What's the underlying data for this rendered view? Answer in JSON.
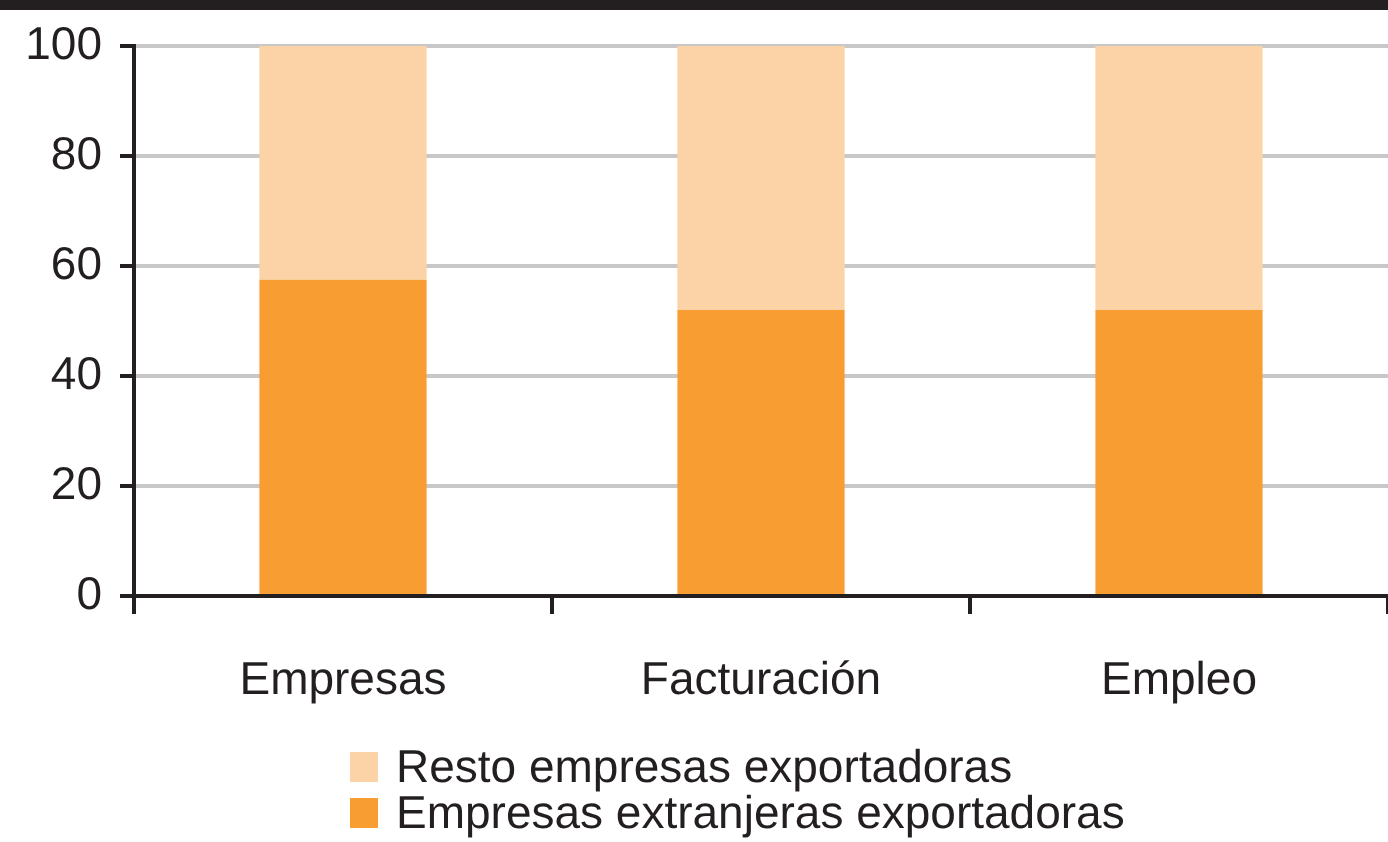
{
  "chart_data": {
    "type": "bar",
    "stacked": true,
    "categories": [
      "Empresas",
      "Facturación",
      "Empleo"
    ],
    "series": [
      {
        "name": "Empresas extranjeras exportadoras",
        "color": "#f89d31",
        "values": [
          57.5,
          52,
          52
        ]
      },
      {
        "name": "Resto empresas exportadoras",
        "color": "#fcd3a6",
        "values": [
          42.5,
          48,
          48
        ]
      }
    ],
    "ylim": [
      0,
      100
    ],
    "yticks": [
      0,
      20,
      40,
      60,
      80,
      100
    ],
    "grid": "y",
    "legend": "bottom"
  }
}
